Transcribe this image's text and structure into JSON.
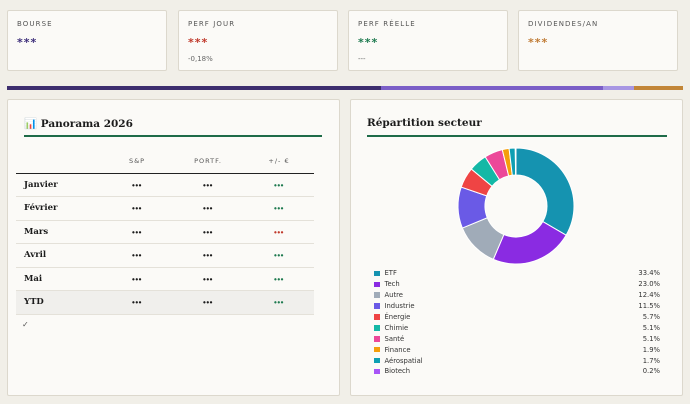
{
  "kpis": [
    {
      "label": "BOURSE",
      "value": "***",
      "color": "#3d2e7a",
      "sub": ""
    },
    {
      "label": "PERF JOUR",
      "value": "***",
      "color": "#c0392b",
      "sub": "-0,18%"
    },
    {
      "label": "PERF RÉELLE",
      "value": "***",
      "color": "#1e7a4f",
      "sub": "---"
    },
    {
      "label": "DIVIDENDES/AN",
      "value": "***",
      "color": "#c07b35",
      "sub": ""
    }
  ],
  "band": [
    {
      "color": "#3d2e6e",
      "share": 0.553
    },
    {
      "color": "#7b5fc7",
      "share": 0.328
    },
    {
      "color": "#a897e3",
      "share": 0.047
    },
    {
      "color": "#c28638",
      "share": 0.072
    }
  ],
  "panorama": {
    "title": "📊 Panorama 2026",
    "columns": [
      "",
      "S&P",
      "PORTF.",
      "+/- €"
    ],
    "rows": [
      {
        "month": "Janvier",
        "sp": "•••",
        "portf": "•••",
        "diff": "•••",
        "diff_color": "#1e7a4f"
      },
      {
        "month": "Février",
        "sp": "•••",
        "portf": "•••",
        "diff": "•••",
        "diff_color": "#1e7a4f"
      },
      {
        "month": "Mars",
        "sp": "•••",
        "portf": "•••",
        "diff": "•••",
        "diff_color": "#c0392b"
      },
      {
        "month": "Avril",
        "sp": "•••",
        "portf": "•••",
        "diff": "•••",
        "diff_color": "#1e7a4f"
      },
      {
        "month": "Mai",
        "sp": "•••",
        "portf": "•••",
        "diff": "•••",
        "diff_color": "#1e7a4f"
      },
      {
        "month": "YTD",
        "sp": "•••",
        "portf": "•••",
        "diff": "•••",
        "diff_color": "#1e7a4f"
      }
    ],
    "footer": "✓"
  },
  "repartition": {
    "title": "Répartition secteur"
  },
  "chart_data": {
    "type": "pie",
    "donut": true,
    "title": "Répartition secteur",
    "legend_position": "bottom",
    "slices": [
      {
        "name": "ETF",
        "value": 33.4,
        "label": "33.4%",
        "color": "#1593b0"
      },
      {
        "name": "Tech",
        "value": 23.0,
        "label": "23.0%",
        "color": "#8a2be2"
      },
      {
        "name": "Autre",
        "value": 12.4,
        "label": "12.4%",
        "color": "#a0abb8"
      },
      {
        "name": "Industrie",
        "value": 11.5,
        "label": "11.5%",
        "color": "#6a5ae6"
      },
      {
        "name": "Énergie",
        "value": 5.7,
        "label": "5.7%",
        "color": "#ef4444"
      },
      {
        "name": "Chimie",
        "value": 5.1,
        "label": "5.1%",
        "color": "#14b8a6"
      },
      {
        "name": "Santé",
        "value": 5.1,
        "label": "5.1%",
        "color": "#ec4899"
      },
      {
        "name": "Finance",
        "value": 1.9,
        "label": "1.9%",
        "color": "#f59e0b"
      },
      {
        "name": "Aérospatial",
        "value": 1.7,
        "label": "1.7%",
        "color": "#0e9fb3"
      },
      {
        "name": "Biotech",
        "value": 0.2,
        "label": "0.2%",
        "color": "#a855f7"
      }
    ]
  }
}
